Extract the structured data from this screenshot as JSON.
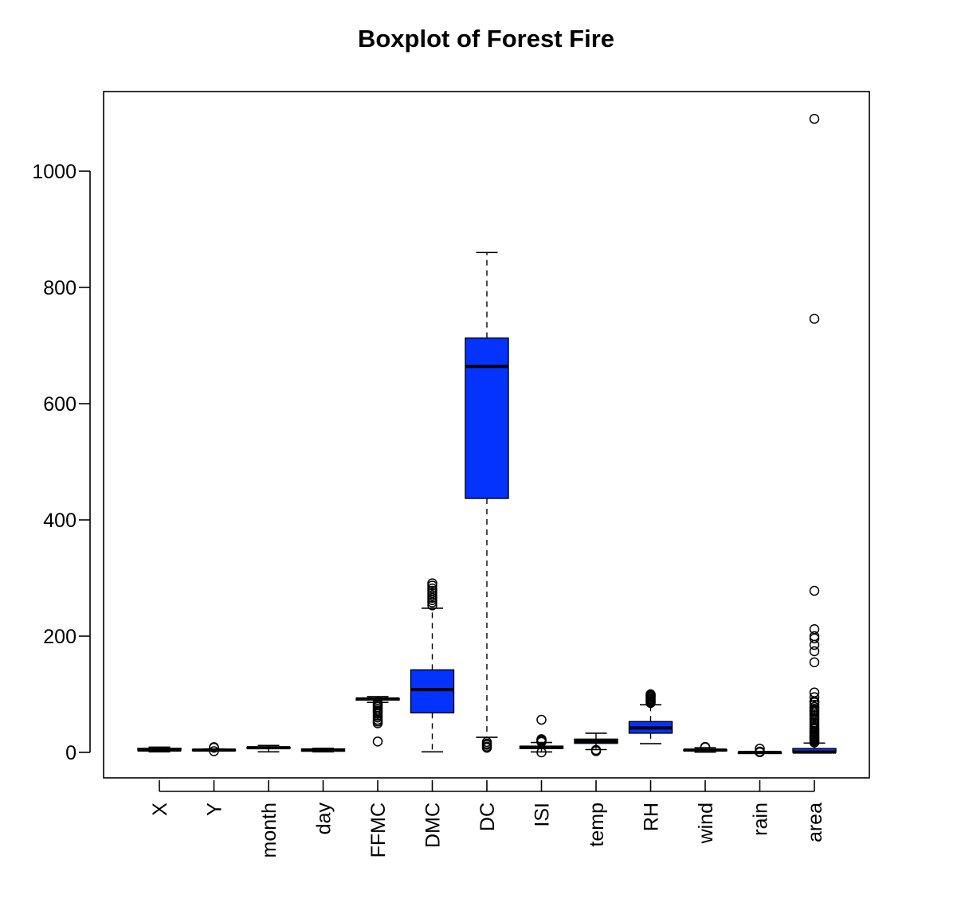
{
  "chart_data": {
    "type": "boxplot",
    "title": "Boxplot of Forest Fire",
    "xlabel": "",
    "ylabel": "",
    "ylim": [
      -40,
      1120
    ],
    "yticks": [
      0,
      200,
      400,
      600,
      800,
      1000
    ],
    "box_color": "#0433ff",
    "grid": false,
    "categories": [
      "X",
      "Y",
      "month",
      "day",
      "FFMC",
      "DMC",
      "DC",
      "ISI",
      "temp",
      "RH",
      "wind",
      "rain",
      "area"
    ],
    "boxes": [
      {
        "label": "X",
        "min": 1,
        "q1": 3,
        "median": 4,
        "q3": 7,
        "max": 9,
        "outliers": []
      },
      {
        "label": "Y",
        "min": 3,
        "q1": 4,
        "median": 4,
        "q3": 5,
        "max": 6,
        "outliers": [
          2,
          8,
          9
        ]
      },
      {
        "label": "month",
        "min": 1,
        "q1": 7,
        "median": 8,
        "q3": 9,
        "max": 12,
        "outliers": []
      },
      {
        "label": "day",
        "min": 1,
        "q1": 2,
        "median": 4,
        "q3": 6,
        "max": 7,
        "outliers": []
      },
      {
        "label": "FFMC",
        "min": 86,
        "q1": 90,
        "median": 92,
        "q3": 93,
        "max": 96,
        "outliers": [
          18.7,
          50,
          53,
          56,
          60,
          63,
          67,
          70,
          72,
          75,
          78,
          81,
          83,
          85
        ]
      },
      {
        "label": "DMC",
        "min": 1,
        "q1": 68,
        "median": 108,
        "q3": 142,
        "max": 248,
        "outliers": [
          253,
          258,
          262,
          266,
          270,
          274,
          278,
          282,
          287,
          291
        ]
      },
      {
        "label": "DC",
        "min": 26,
        "q1": 437,
        "median": 664,
        "q3": 713,
        "max": 860,
        "outliers": [
          7.9,
          10,
          13,
          15,
          18
        ]
      },
      {
        "label": "ISI",
        "min": 0.8,
        "q1": 6.5,
        "median": 8.4,
        "q3": 10.8,
        "max": 17,
        "outliers": [
          0,
          18,
          19,
          20,
          21,
          22,
          22.7,
          56.1
        ]
      },
      {
        "label": "temp",
        "min": 4.8,
        "q1": 15.5,
        "median": 19.3,
        "q3": 22.8,
        "max": 33,
        "outliers": [
          2.2,
          4.2
        ]
      },
      {
        "label": "RH",
        "min": 15,
        "q1": 33,
        "median": 42,
        "q3": 53,
        "max": 82,
        "outliers": [
          85,
          87,
          88,
          90,
          92,
          94,
          96,
          97,
          99,
          100
        ]
      },
      {
        "label": "wind",
        "min": 0.4,
        "q1": 2.7,
        "median": 4,
        "q3": 4.9,
        "max": 8,
        "outliers": [
          8.5,
          9.4
        ]
      },
      {
        "label": "rain",
        "min": 0,
        "q1": 0,
        "median": 0,
        "q3": 0,
        "max": 0,
        "outliers": [
          0.2,
          0.4,
          0.8,
          1,
          1.4,
          6.4
        ]
      },
      {
        "label": "area",
        "min": 0,
        "q1": 0,
        "median": 0.5,
        "q3": 6.6,
        "max": 16,
        "outliers": [
          17,
          19,
          21,
          23,
          25,
          27,
          29,
          31,
          33,
          35,
          37,
          40,
          42,
          45,
          48,
          51,
          55,
          58,
          61,
          64,
          67,
          70,
          72,
          75,
          78,
          82,
          86,
          88,
          95,
          103,
          155,
          174,
          185,
          196,
          200,
          212,
          278,
          746,
          1090
        ]
      }
    ]
  }
}
